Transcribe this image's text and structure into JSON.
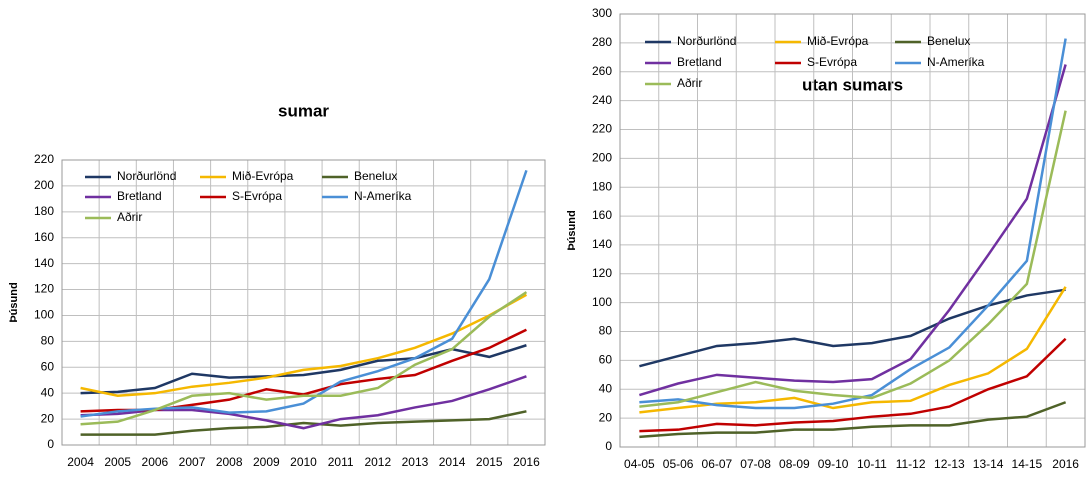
{
  "chart_data": [
    {
      "type": "line",
      "title": "sumar",
      "y_label": "Þúsund",
      "categories": [
        "2004",
        "2005",
        "2006",
        "2007",
        "2008",
        "2009",
        "2010",
        "2011",
        "2012",
        "2013",
        "2014",
        "2015",
        "2016"
      ],
      "ylim": [
        0,
        220
      ],
      "yticks": [
        0,
        20,
        40,
        60,
        80,
        100,
        120,
        140,
        160,
        180,
        200,
        220
      ],
      "grid": true,
      "series": [
        {
          "name": "Norðurlönd",
          "color": "#1f3864",
          "values": [
            40,
            41,
            44,
            55,
            52,
            53,
            54,
            58,
            65,
            67,
            74,
            68,
            77
          ]
        },
        {
          "name": "Mið-Evrópa",
          "color": "#f5b800",
          "values": [
            44,
            38,
            40,
            45,
            48,
            52,
            58,
            61,
            67,
            75,
            86,
            100,
            116
          ]
        },
        {
          "name": "Benelux",
          "color": "#4f6228",
          "values": [
            8,
            8,
            8,
            11,
            13,
            14,
            17,
            15,
            17,
            18,
            19,
            20,
            26
          ]
        },
        {
          "name": "Bretland",
          "color": "#7030a0",
          "values": [
            23,
            24,
            27,
            27,
            24,
            19,
            13,
            20,
            23,
            29,
            34,
            43,
            53
          ]
        },
        {
          "name": "S-Evrópa",
          "color": "#c00000",
          "values": [
            26,
            27,
            27,
            31,
            35,
            43,
            39,
            47,
            51,
            54,
            65,
            75,
            89
          ]
        },
        {
          "name": "N-Ameríka",
          "color": "#4a8fd6",
          "values": [
            22,
            26,
            28,
            29,
            25,
            26,
            32,
            49,
            57,
            67,
            82,
            128,
            212
          ]
        },
        {
          "name": "Aðrir",
          "color": "#9bbb59",
          "values": [
            16,
            18,
            27,
            38,
            40,
            35,
            38,
            38,
            44,
            62,
            74,
            99,
            118
          ]
        }
      ]
    },
    {
      "type": "line",
      "title": "utan sumars",
      "y_label": "Þúsund",
      "categories": [
        "04-05",
        "05-06",
        "06-07",
        "07-08",
        "08-09",
        "09-10",
        "10-11",
        "11-12",
        "12-13",
        "13-14",
        "14-15",
        "2016"
      ],
      "ylim": [
        0,
        300
      ],
      "yticks": [
        0,
        20,
        40,
        60,
        80,
        100,
        120,
        140,
        160,
        180,
        200,
        220,
        240,
        260,
        280,
        300
      ],
      "grid": true,
      "series": [
        {
          "name": "Norðurlönd",
          "color": "#1f3864",
          "values": [
            56,
            63,
            70,
            72,
            75,
            70,
            72,
            77,
            89,
            98,
            105,
            109
          ]
        },
        {
          "name": "Mið-Evrópa",
          "color": "#f5b800",
          "values": [
            24,
            27,
            30,
            31,
            34,
            27,
            31,
            32,
            43,
            51,
            68,
            111
          ]
        },
        {
          "name": "Benelux",
          "color": "#4f6228",
          "values": [
            7,
            9,
            10,
            10,
            12,
            12,
            14,
            15,
            15,
            19,
            21,
            31
          ]
        },
        {
          "name": "Bretland",
          "color": "#7030a0",
          "values": [
            36,
            44,
            50,
            48,
            46,
            45,
            47,
            61,
            95,
            133,
            172,
            265
          ]
        },
        {
          "name": "S-Evrópa",
          "color": "#c00000",
          "values": [
            11,
            12,
            16,
            15,
            17,
            18,
            21,
            23,
            28,
            40,
            49,
            75
          ]
        },
        {
          "name": "N-Ameríka",
          "color": "#4a8fd6",
          "values": [
            31,
            33,
            29,
            27,
            27,
            30,
            36,
            54,
            69,
            98,
            129,
            283
          ]
        },
        {
          "name": "Aðrir",
          "color": "#9bbb59",
          "values": [
            28,
            31,
            38,
            45,
            39,
            36,
            34,
            44,
            60,
            85,
            113,
            233
          ]
        }
      ]
    }
  ]
}
